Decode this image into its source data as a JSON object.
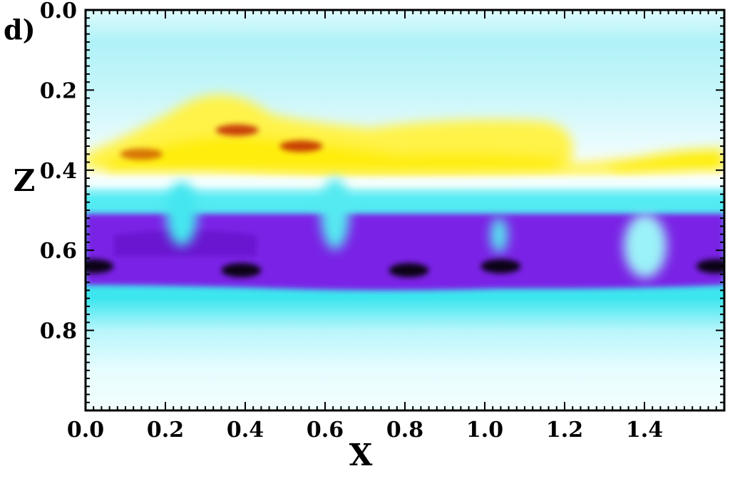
{
  "chart_data": {
    "type": "heatmap",
    "panel_label": "d)",
    "xlabel": "X",
    "ylabel": "Z",
    "xlim": [
      0.0,
      1.6
    ],
    "ylim": [
      0.0,
      1.0
    ],
    "y_inverted": true,
    "x_ticks": [
      "0.0",
      "0.2",
      "0.4",
      "0.6",
      "0.8",
      "1.0",
      "1.2",
      "1.4"
    ],
    "y_ticks": [
      "0.0",
      "0.2",
      "0.4",
      "0.6",
      "0.8"
    ],
    "x_tick_values": [
      0.0,
      0.2,
      0.4,
      0.6,
      0.8,
      1.0,
      1.2,
      1.4
    ],
    "y_tick_values": [
      0.0,
      0.2,
      0.4,
      0.6,
      0.8
    ],
    "colormap": [
      "#1a0030",
      "#7a1fe0",
      "#00e8f0",
      "#ffffff",
      "#fff000",
      "#c02000"
    ],
    "features": [
      {
        "kind": "positive-band",
        "z_range": [
          0.28,
          0.44
        ],
        "color": "#ffee10"
      },
      {
        "kind": "negative-band",
        "z_range": [
          0.52,
          0.7
        ],
        "color": "#7a1fe0"
      },
      {
        "kind": "hot-spot",
        "x": 0.38,
        "z": 0.3,
        "color": "#c02000"
      },
      {
        "kind": "hot-spot",
        "x": 0.54,
        "z": 0.34,
        "color": "#c02000"
      },
      {
        "kind": "hot-spot",
        "x": 0.14,
        "z": 0.36,
        "color": "#d06000"
      },
      {
        "kind": "dark-core",
        "x": 0.39,
        "z": 0.65,
        "color": "#000000"
      },
      {
        "kind": "dark-core",
        "x": 0.81,
        "z": 0.65,
        "color": "#000000"
      },
      {
        "kind": "dark-core",
        "x": 1.04,
        "z": 0.64,
        "color": "#000000"
      },
      {
        "kind": "dark-core",
        "x": 0.02,
        "z": 0.64,
        "color": "#000000"
      },
      {
        "kind": "dark-core",
        "x": 1.58,
        "z": 0.64,
        "color": "#000000"
      }
    ]
  }
}
